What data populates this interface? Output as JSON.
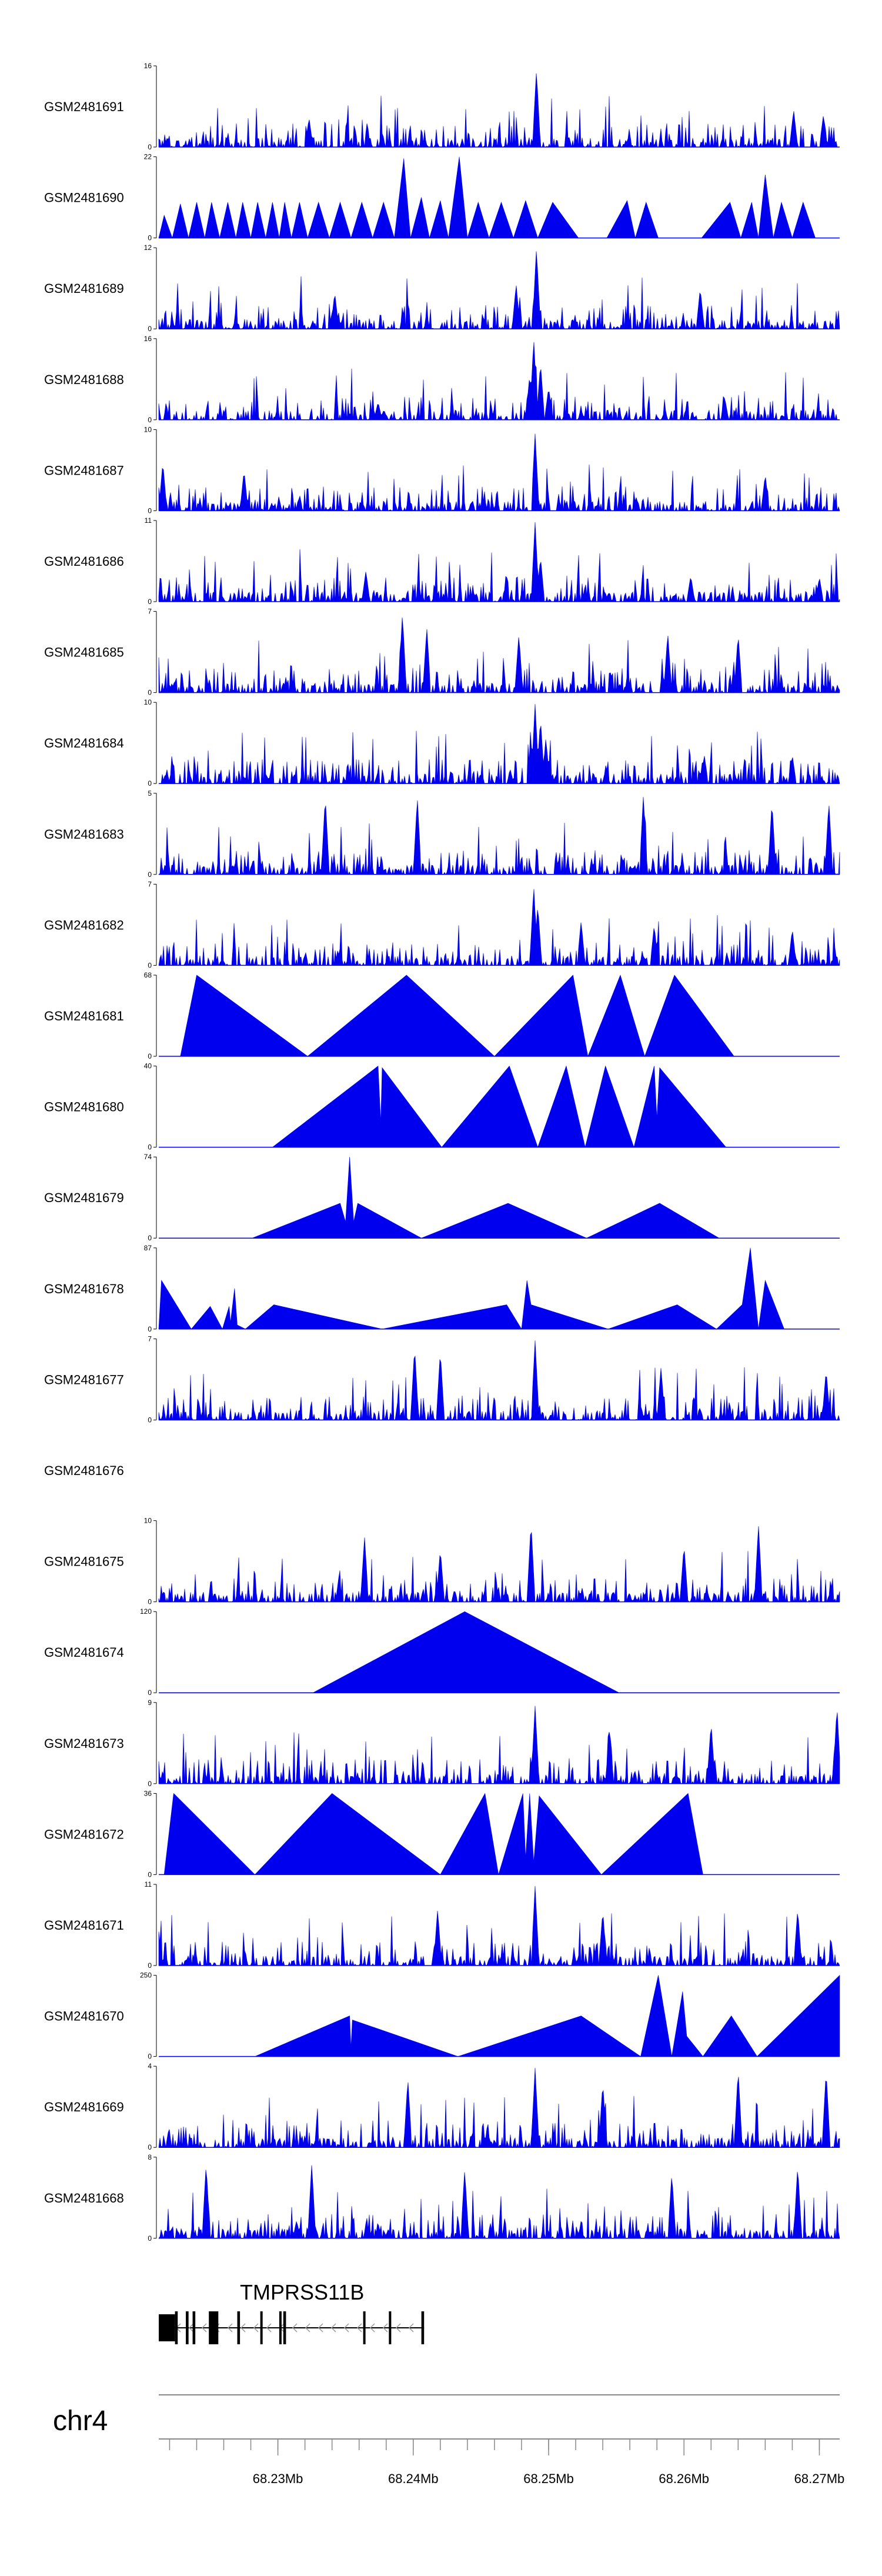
{
  "chart_data": {
    "type": "area",
    "title": "",
    "chromosome": "chr4",
    "xlim": [
      68.2212,
      68.2715
    ],
    "x_unit": "Mb",
    "x_ticks": [
      68.23,
      68.24,
      68.25,
      68.26,
      68.27
    ],
    "x_tick_labels": [
      "68.23Mb",
      "68.24Mb",
      "68.25Mb",
      "68.26Mb",
      "68.27Mb"
    ],
    "fill_color": "#0000ee",
    "tracks": [
      {
        "name": "GSM2481691",
        "ymax": 16,
        "ymax_label": "16",
        "style": "dense",
        "peaks": [
          [
            68.2491,
            0.95
          ],
          [
            68.2323,
            0.36
          ],
          [
            68.2681,
            0.46
          ],
          [
            68.2703,
            0.4
          ]
        ]
      },
      {
        "name": "GSM2481690",
        "ymax": 22,
        "ymax_label": "22",
        "style": "triangles",
        "points": [
          [
            68.2212,
            0
          ],
          [
            68.2216,
            0.28
          ],
          [
            68.2222,
            0
          ],
          [
            68.2228,
            0.42
          ],
          [
            68.2234,
            0
          ],
          [
            68.224,
            0.44
          ],
          [
            68.2246,
            0
          ],
          [
            68.2251,
            0.44
          ],
          [
            68.2257,
            0
          ],
          [
            68.2263,
            0.44
          ],
          [
            68.2269,
            0
          ],
          [
            68.2274,
            0.44
          ],
          [
            68.228,
            0
          ],
          [
            68.2285,
            0.44
          ],
          [
            68.2291,
            0
          ],
          [
            68.2296,
            0.44
          ],
          [
            68.2301,
            0
          ],
          [
            68.2305,
            0.44
          ],
          [
            68.231,
            0
          ],
          [
            68.2316,
            0.44
          ],
          [
            68.2322,
            0
          ],
          [
            68.233,
            0.44
          ],
          [
            68.2338,
            0
          ],
          [
            68.2346,
            0.44
          ],
          [
            68.2354,
            0
          ],
          [
            68.2362,
            0.44
          ],
          [
            68.237,
            0
          ],
          [
            68.2378,
            0.44
          ],
          [
            68.2386,
            0
          ],
          [
            68.2393,
            0.98
          ],
          [
            68.2398,
            0
          ],
          [
            68.2406,
            0.5
          ],
          [
            68.2412,
            0
          ],
          [
            68.242,
            0.46
          ],
          [
            68.2426,
            0
          ],
          [
            68.2434,
            1.0
          ],
          [
            68.244,
            0
          ],
          [
            68.2448,
            0.44
          ],
          [
            68.2456,
            0
          ],
          [
            68.2465,
            0.44
          ],
          [
            68.2474,
            0
          ],
          [
            68.2483,
            0.46
          ],
          [
            68.2492,
            0
          ],
          [
            68.2503,
            0.44
          ],
          [
            68.2522,
            0
          ],
          [
            68.2543,
            0
          ],
          [
            68.2558,
            0.46
          ],
          [
            68.2564,
            0
          ],
          [
            68.2572,
            0.44
          ],
          [
            68.2581,
            0
          ],
          [
            68.2594,
            0
          ],
          [
            68.2613,
            0
          ],
          [
            68.2634,
            0.44
          ],
          [
            68.2642,
            0
          ],
          [
            68.265,
            0.44
          ],
          [
            68.2655,
            0
          ],
          [
            68.266,
            0.78
          ],
          [
            68.2666,
            0
          ],
          [
            68.2672,
            0.44
          ],
          [
            68.268,
            0
          ],
          [
            68.2688,
            0.44
          ],
          [
            68.2697,
            0
          ],
          [
            68.2715,
            0
          ]
        ]
      },
      {
        "name": "GSM2481689",
        "ymax": 12,
        "ymax_label": "12",
        "style": "dense",
        "peaks": [
          [
            68.2491,
            1.0
          ],
          [
            68.2476,
            0.55
          ],
          [
            68.2342,
            0.45
          ],
          [
            68.2612,
            0.5
          ]
        ]
      },
      {
        "name": "GSM2481688",
        "ymax": 16,
        "ymax_label": "16",
        "style": "dense",
        "peaks": [
          [
            68.2489,
            1.0
          ],
          [
            68.2494,
            0.7
          ],
          [
            68.2486,
            0.55
          ],
          [
            68.25,
            0.4
          ],
          [
            68.263,
            0.28
          ],
          [
            68.2374,
            0.22
          ]
        ]
      },
      {
        "name": "GSM2481687",
        "ymax": 10,
        "ymax_label": "10",
        "style": "dense",
        "peaks": [
          [
            68.249,
            0.95
          ],
          [
            68.2215,
            0.6
          ],
          [
            68.2275,
            0.5
          ],
          [
            68.266,
            0.45
          ]
        ]
      },
      {
        "name": "GSM2481686",
        "ymax": 11,
        "ymax_label": "11",
        "style": "dense",
        "peaks": [
          [
            68.249,
            0.98
          ],
          [
            68.2494,
            0.55
          ],
          [
            68.2365,
            0.38
          ],
          [
            68.2605,
            0.32
          ],
          [
            68.27,
            0.3
          ]
        ]
      },
      {
        "name": "GSM2481685",
        "ymax": 7,
        "ymax_label": "7",
        "style": "dense",
        "peaks": [
          [
            68.2392,
            0.98
          ],
          [
            68.241,
            0.8
          ],
          [
            68.2478,
            0.72
          ],
          [
            68.2588,
            0.74
          ],
          [
            68.264,
            0.72
          ]
        ]
      },
      {
        "name": "GSM2481684",
        "ymax": 10,
        "ymax_label": "10",
        "style": "dense",
        "peaks": [
          [
            68.249,
            0.98
          ],
          [
            68.2494,
            0.8
          ],
          [
            68.2498,
            0.55
          ],
          [
            68.2487,
            0.5
          ],
          [
            68.2615,
            0.35
          ],
          [
            68.268,
            0.35
          ]
        ]
      },
      {
        "name": "GSM2481683",
        "ymax": 5,
        "ymax_label": "5",
        "style": "dense",
        "peaks": [
          [
            68.2335,
            0.96
          ],
          [
            68.2403,
            0.95
          ],
          [
            68.257,
            0.98
          ],
          [
            68.2665,
            0.9
          ],
          [
            68.2707,
            0.9
          ]
        ]
      },
      {
        "name": "GSM2481682",
        "ymax": 7,
        "ymax_label": "7",
        "style": "dense",
        "peaks": [
          [
            68.2489,
            0.98
          ],
          [
            68.2492,
            0.75
          ],
          [
            68.2524,
            0.55
          ],
          [
            68.2578,
            0.5
          ],
          [
            68.268,
            0.45
          ]
        ]
      },
      {
        "name": "GSM2481681",
        "ymax": 68,
        "ymax_label": "68",
        "style": "triangles",
        "points": [
          [
            68.2212,
            0
          ],
          [
            68.2228,
            0
          ],
          [
            68.224,
            1.0
          ],
          [
            68.2322,
            0
          ],
          [
            68.2395,
            1.0
          ],
          [
            68.246,
            0
          ],
          [
            68.2518,
            1.0
          ],
          [
            68.2529,
            0
          ],
          [
            68.2553,
            1.0
          ],
          [
            68.2571,
            0
          ],
          [
            68.2593,
            1.0
          ],
          [
            68.2637,
            0
          ],
          [
            68.2715,
            0
          ]
        ]
      },
      {
        "name": "GSM2481680",
        "ymax": 40,
        "ymax_label": "40",
        "style": "triangles",
        "points": [
          [
            68.2212,
            0
          ],
          [
            68.2296,
            0
          ],
          [
            68.2374,
            1.0
          ],
          [
            68.2376,
            0.3
          ],
          [
            68.2377,
            0.98
          ],
          [
            68.2421,
            0
          ],
          [
            68.2471,
            1.0
          ],
          [
            68.2492,
            0
          ],
          [
            68.2513,
            1.0
          ],
          [
            68.2527,
            0
          ],
          [
            68.2542,
            1.0
          ],
          [
            68.2563,
            0
          ],
          [
            68.2578,
            1.0
          ],
          [
            68.258,
            0.35
          ],
          [
            68.2582,
            0.98
          ],
          [
            68.2631,
            0
          ],
          [
            68.2715,
            0
          ]
        ]
      },
      {
        "name": "GSM2481679",
        "ymax": 74,
        "ymax_label": "74",
        "style": "triangles",
        "points": [
          [
            68.2212,
            0
          ],
          [
            68.2281,
            0
          ],
          [
            68.2346,
            0.43
          ],
          [
            68.235,
            0.2
          ],
          [
            68.2353,
            1.0
          ],
          [
            68.2356,
            0.2
          ],
          [
            68.2359,
            0.43
          ],
          [
            68.2406,
            0
          ],
          [
            68.247,
            0.43
          ],
          [
            68.2528,
            0
          ],
          [
            68.2582,
            0.43
          ],
          [
            68.2626,
            0
          ],
          [
            68.2715,
            0
          ]
        ]
      },
      {
        "name": "GSM2481678",
        "ymax": 87,
        "ymax_label": "87",
        "style": "triangles",
        "points": [
          [
            68.2212,
            0
          ],
          [
            68.2214,
            0.6
          ],
          [
            68.2236,
            0
          ],
          [
            68.225,
            0.28
          ],
          [
            68.2259,
            0
          ],
          [
            68.2264,
            0.28
          ],
          [
            68.2265,
            0.08
          ],
          [
            68.2268,
            0.5
          ],
          [
            68.227,
            0.05
          ],
          [
            68.2276,
            0
          ],
          [
            68.2297,
            0.3
          ],
          [
            68.2377,
            0
          ],
          [
            68.2469,
            0.3
          ],
          [
            68.248,
            0
          ],
          [
            68.2484,
            0.6
          ],
          [
            68.2487,
            0.3
          ],
          [
            68.2544,
            0
          ],
          [
            68.2595,
            0.3
          ],
          [
            68.2624,
            0
          ],
          [
            68.2643,
            0.3
          ],
          [
            68.2649,
            1.0
          ],
          [
            68.2655,
            0
          ],
          [
            68.266,
            0.6
          ],
          [
            68.2674,
            0
          ],
          [
            68.2715,
            0
          ]
        ]
      },
      {
        "name": "GSM2481677",
        "ymax": 7,
        "ymax_label": "7",
        "style": "dense",
        "peaks": [
          [
            68.2401,
            0.9
          ],
          [
            68.242,
            0.85
          ],
          [
            68.249,
            0.98
          ],
          [
            68.2583,
            0.65
          ],
          [
            68.2705,
            0.62
          ]
        ]
      },
      {
        "name": "GSM2481676",
        "ymax": 0,
        "ymax_label": "",
        "style": "empty"
      },
      {
        "name": "GSM2481675",
        "ymax": 10,
        "ymax_label": "10",
        "style": "dense",
        "peaks": [
          [
            68.2487,
            0.98
          ],
          [
            68.2655,
            0.95
          ],
          [
            68.2364,
            0.8
          ],
          [
            68.26,
            0.7
          ],
          [
            68.242,
            0.65
          ]
        ]
      },
      {
        "name": "GSM2481674",
        "ymax": 120,
        "ymax_label": "120",
        "style": "triangles",
        "points": [
          [
            68.2212,
            0
          ],
          [
            68.2326,
            0
          ],
          [
            68.2438,
            1.0
          ],
          [
            68.2552,
            0
          ],
          [
            68.2715,
            0
          ]
        ]
      },
      {
        "name": "GSM2481673",
        "ymax": 9,
        "ymax_label": "9",
        "style": "dense",
        "peaks": [
          [
            68.249,
            0.96
          ],
          [
            68.2713,
            0.96
          ],
          [
            68.2545,
            0.7
          ],
          [
            68.262,
            0.75
          ]
        ]
      },
      {
        "name": "GSM2481672",
        "ymax": 36,
        "ymax_label": "36",
        "style": "triangles",
        "points": [
          [
            68.2212,
            0
          ],
          [
            68.2216,
            0
          ],
          [
            68.2223,
            1.0
          ],
          [
            68.2283,
            0
          ],
          [
            68.234,
            1.0
          ],
          [
            68.242,
            0
          ],
          [
            68.2453,
            1.0
          ],
          [
            68.2463,
            0
          ],
          [
            68.2481,
            1.0
          ],
          [
            68.2483,
            0.2
          ],
          [
            68.2486,
            1.0
          ],
          [
            68.2489,
            0.15
          ],
          [
            68.2493,
            0.97
          ],
          [
            68.2539,
            0
          ],
          [
            68.2603,
            1.0
          ],
          [
            68.2614,
            0
          ],
          [
            68.2715,
            0
          ]
        ]
      },
      {
        "name": "GSM2481671",
        "ymax": 11,
        "ymax_label": "11",
        "style": "dense",
        "peaks": [
          [
            68.249,
            0.98
          ],
          [
            68.2418,
            0.7
          ],
          [
            68.254,
            0.68
          ],
          [
            68.2684,
            0.7
          ]
        ]
      },
      {
        "name": "GSM2481670",
        "ymax": 250,
        "ymax_label": "250",
        "style": "triangles",
        "points": [
          [
            68.2212,
            0
          ],
          [
            68.2283,
            0
          ],
          [
            68.2353,
            0.5
          ],
          [
            68.2354,
            0.1
          ],
          [
            68.2355,
            0.45
          ],
          [
            68.2433,
            0
          ],
          [
            68.2524,
            0.5
          ],
          [
            68.2568,
            0
          ],
          [
            68.2581,
            1.0
          ],
          [
            68.2591,
            0
          ],
          [
            68.2599,
            0.8
          ],
          [
            68.2602,
            0.25
          ],
          [
            68.2614,
            0
          ],
          [
            68.2635,
            0.5
          ],
          [
            68.2654,
            0
          ],
          [
            68.2715,
            1.0
          ],
          [
            68.2715,
            0
          ]
        ]
      },
      {
        "name": "GSM2481669",
        "ymax": 4,
        "ymax_label": "4",
        "style": "dense",
        "peaks": [
          [
            68.249,
            0.98
          ],
          [
            68.264,
            0.96
          ],
          [
            68.2705,
            0.95
          ],
          [
            68.2396,
            0.85
          ],
          [
            68.254,
            0.8
          ]
        ]
      },
      {
        "name": "GSM2481668",
        "ymax": 8,
        "ymax_label": "8",
        "style": "dense",
        "peaks": [
          [
            68.2247,
            0.92
          ],
          [
            68.2325,
            0.92
          ],
          [
            68.2438,
            0.85
          ],
          [
            68.2591,
            0.8
          ],
          [
            68.2684,
            0.9
          ]
        ]
      }
    ],
    "gene": {
      "name": "TMPRSS11B",
      "strand": "-",
      "start": 68.2212,
      "end": 68.2408,
      "exons": [
        [
          68.2212,
          68.2224
        ],
        [
          68.2224,
          68.2226
        ],
        [
          68.2232,
          68.2234
        ],
        [
          68.2237,
          68.2239
        ],
        [
          68.2249,
          68.2256
        ],
        [
          68.227,
          68.2272
        ],
        [
          68.2287,
          68.2288
        ],
        [
          68.2301,
          68.2302
        ],
        [
          68.2304,
          68.2306
        ],
        [
          68.2363,
          68.2364
        ],
        [
          68.2382,
          68.2383
        ],
        [
          68.2406,
          68.2408
        ]
      ]
    }
  }
}
